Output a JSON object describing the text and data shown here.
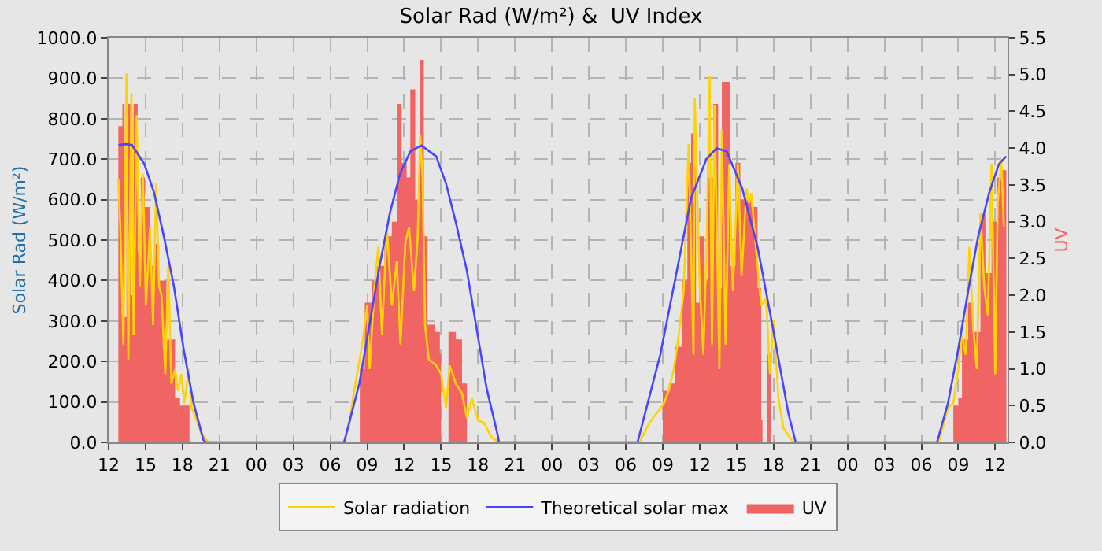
{
  "chart_data": {
    "type": "line",
    "title": "Solar Rad (W/m²) &  UV Index",
    "ylabel": "Solar Rad (W/m²)",
    "y2label": "UV",
    "xlim": [
      12,
      85
    ],
    "xticks": [
      {
        "value": 12,
        "label": "12"
      },
      {
        "value": 15,
        "label": "15"
      },
      {
        "value": 18,
        "label": "18"
      },
      {
        "value": 21,
        "label": "21"
      },
      {
        "value": 24,
        "label": "00"
      },
      {
        "value": 27,
        "label": "03"
      },
      {
        "value": 30,
        "label": "06"
      },
      {
        "value": 33,
        "label": "09"
      },
      {
        "value": 36,
        "label": "12"
      },
      {
        "value": 39,
        "label": "15"
      },
      {
        "value": 42,
        "label": "18"
      },
      {
        "value": 45,
        "label": "21"
      },
      {
        "value": 48,
        "label": "00"
      },
      {
        "value": 51,
        "label": "03"
      },
      {
        "value": 54,
        "label": "06"
      },
      {
        "value": 57,
        "label": "09"
      },
      {
        "value": 60,
        "label": "12"
      },
      {
        "value": 63,
        "label": "15"
      },
      {
        "value": 66,
        "label": "18"
      },
      {
        "value": 69,
        "label": "21"
      },
      {
        "value": 72,
        "label": "00"
      },
      {
        "value": 75,
        "label": "03"
      },
      {
        "value": 78,
        "label": "06"
      },
      {
        "value": 81,
        "label": "09"
      },
      {
        "value": 84,
        "label": "12"
      }
    ],
    "ylim": [
      0,
      1000
    ],
    "yticks": [
      {
        "value": 0,
        "label": "0.0"
      },
      {
        "value": 100,
        "label": "100.0"
      },
      {
        "value": 200,
        "label": "200.0"
      },
      {
        "value": 300,
        "label": "300.0"
      },
      {
        "value": 400,
        "label": "400.0"
      },
      {
        "value": 500,
        "label": "500.0"
      },
      {
        "value": 600,
        "label": "600.0"
      },
      {
        "value": 700,
        "label": "700.0"
      },
      {
        "value": 800,
        "label": "800.0"
      },
      {
        "value": 900,
        "label": "900.0"
      },
      {
        "value": 1000,
        "label": "1000.0"
      }
    ],
    "y2lim": [
      0,
      5.5
    ],
    "y2ticks": [
      {
        "value": 0,
        "label": "0.0"
      },
      {
        "value": 0.5,
        "label": "0.5"
      },
      {
        "value": 1,
        "label": "1.0"
      },
      {
        "value": 1.5,
        "label": "1.5"
      },
      {
        "value": 2,
        "label": "2.0"
      },
      {
        "value": 2.5,
        "label": "2.5"
      },
      {
        "value": 3,
        "label": "3.0"
      },
      {
        "value": 3.5,
        "label": "3.5"
      },
      {
        "value": 4,
        "label": "4.0"
      },
      {
        "value": 4.5,
        "label": "4.5"
      },
      {
        "value": 5,
        "label": "5.0"
      },
      {
        "value": 5.5,
        "label": "5.5"
      }
    ],
    "grid": true,
    "legend": "bottom",
    "marker": "none",
    "line_style": "solid",
    "series": [
      {
        "name": "Solar radiation",
        "color": "#ffd200",
        "x": [
          12.79,
          12.95,
          13.2,
          13.45,
          13.6,
          13.86,
          14.03,
          14.28,
          14.53,
          14.78,
          15.03,
          15.36,
          15.61,
          15.86,
          16.1,
          16.3,
          16.6,
          16.85,
          17.1,
          17.4,
          17.65,
          17.9,
          18.15,
          18.5,
          18.75,
          19.08,
          19.5,
          20.1,
          31.1,
          31.5,
          31.9,
          32.6,
          33.0,
          33.2,
          33.6,
          33.9,
          34.2,
          34.6,
          35.0,
          35.4,
          35.7,
          36.1,
          36.4,
          36.8,
          37.1,
          37.3,
          37.5,
          37.7,
          38.0,
          38.6,
          39.0,
          39.4,
          39.7,
          40.2,
          40.7,
          41.1,
          41.5,
          42.0,
          42.5,
          43.1,
          43.7,
          55.1,
          55.9,
          56.5,
          57.1,
          57.4,
          57.9,
          58.3,
          58.7,
          59.1,
          59.5,
          59.6,
          60.0,
          60.3,
          60.6,
          60.8,
          61.0,
          61.2,
          61.6,
          61.8,
          62.1,
          62.4,
          62.7,
          63.1,
          63.4,
          63.8,
          64.0,
          64.2,
          64.6,
          65.0,
          65.4,
          65.7,
          66.0,
          66.4,
          66.8,
          67.6,
          79.4,
          80.16,
          80.6,
          81.0,
          81.3,
          81.6,
          81.9,
          82.2,
          82.5,
          82.8,
          83.1,
          83.4,
          83.7,
          84.0,
          84.2,
          84.5,
          84.7
        ],
        "values": [
          652,
          531,
          242,
          912,
          205,
          864,
          266,
          809,
          386,
          664,
          338,
          531,
          290,
          640,
          386,
          362,
          169,
          435,
          145,
          181,
          127,
          169,
          97,
          181,
          85,
          60,
          24,
          0,
          0,
          36,
          120,
          242,
          338,
          181,
          386,
          483,
          266,
          531,
          338,
          447,
          242,
          495,
          531,
          374,
          507,
          760,
          652,
          290,
          205,
          190,
          169,
          85,
          190,
          145,
          121,
          60,
          109,
          54,
          48,
          12,
          0,
          0,
          48,
          72,
          97,
          121,
          181,
          266,
          374,
          737,
          217,
          851,
          386,
          217,
          531,
          906,
          242,
          833,
          181,
          773,
          242,
          688,
          374,
          688,
          411,
          628,
          592,
          616,
          471,
          338,
          356,
          169,
          302,
          109,
          36,
          0,
          0,
          85,
          97,
          181,
          266,
          217,
          483,
          290,
          181,
          568,
          386,
          314,
          688,
          169,
          592,
          700,
          531
        ]
      },
      {
        "name": "Theoretical solar max",
        "type": "line",
        "color": "#4646ff",
        "x": [
          12.8,
          13.4,
          13.9,
          14.9,
          15.7,
          16.5,
          17.3,
          18.1,
          18.9,
          19.7,
          19.9,
          31.12,
          32.36,
          33.18,
          34.0,
          34.85,
          35.67,
          36.5,
          37.4,
          38.6,
          39.4,
          40.2,
          41.1,
          41.9,
          42.7,
          43.6,
          43.7,
          54.95,
          56.8,
          58.06,
          59.3,
          60.54,
          61.37,
          62.2,
          63.45,
          64.7,
          65.9,
          67.2,
          67.8,
          79.27,
          80.16,
          80.99,
          81.8,
          82.6,
          83.5,
          84.3,
          84.9
        ],
        "values": [
          735,
          737,
          735,
          688,
          616,
          507,
          386,
          229,
          97,
          6,
          0,
          0,
          145,
          290,
          435,
          568,
          664,
          719,
          734,
          707,
          640,
          543,
          423,
          278,
          133,
          18,
          0,
          0,
          217,
          411,
          604,
          700,
          727,
          719,
          628,
          483,
          290,
          72,
          0,
          0,
          97,
          229,
          374,
          507,
          616,
          688,
          707
        ]
      },
      {
        "name": "UV",
        "type": "area",
        "axis": "y2",
        "color": "#f06464",
        "x": [
          12.79,
          13.12,
          13.29,
          13.45,
          13.78,
          14.03,
          14.36,
          14.61,
          14.94,
          15.36,
          15.78,
          16.1,
          16.4,
          16.7,
          17.0,
          17.4,
          17.8,
          18.2,
          18.57,
          32.4,
          32.8,
          33.4,
          33.8,
          34.4,
          35.0,
          35.4,
          35.8,
          36.2,
          36.5,
          36.9,
          37.3,
          37.6,
          37.9,
          38.5,
          38.9,
          39.0,
          39.6,
          40.2,
          40.7,
          41.1,
          57.0,
          57.6,
          58.0,
          58.6,
          59.0,
          59.3,
          59.7,
          60.0,
          60.4,
          60.7,
          61.1,
          61.5,
          61.8,
          62.2,
          62.5,
          62.9,
          63.3,
          63.8,
          64.2,
          64.7,
          65.0,
          65.1,
          65.5,
          65.8,
          80.6,
          81.0,
          81.3,
          81.8,
          82.2,
          82.8,
          83.2,
          83.7,
          84.1,
          84.5,
          84.9
        ],
        "values": [
          4.3,
          4.6,
          1.7,
          4.6,
          2.0,
          4.6,
          2.6,
          3.6,
          3.2,
          2.4,
          2.7,
          2.2,
          2.2,
          1.4,
          1.4,
          0.6,
          0.5,
          0.5,
          0,
          1.0,
          1.9,
          2.2,
          2.4,
          2.8,
          3.0,
          4.6,
          3.8,
          3.6,
          4.8,
          3.3,
          5.2,
          2.8,
          1.6,
          1.5,
          1.2,
          0,
          1.5,
          1.4,
          0.8,
          0,
          0.7,
          0.8,
          1.3,
          2.2,
          3.8,
          4.2,
          1.9,
          2.8,
          2.2,
          3.6,
          4.6,
          2.1,
          4.9,
          4.9,
          2.4,
          3.8,
          3.3,
          3.3,
          3.2,
          2.1,
          0.3,
          0,
          1.2,
          0,
          0.5,
          0.6,
          1.4,
          1.9,
          1.5,
          3.1,
          2.3,
          3.0,
          3.6,
          3.7,
          3.7
        ]
      }
    ]
  }
}
